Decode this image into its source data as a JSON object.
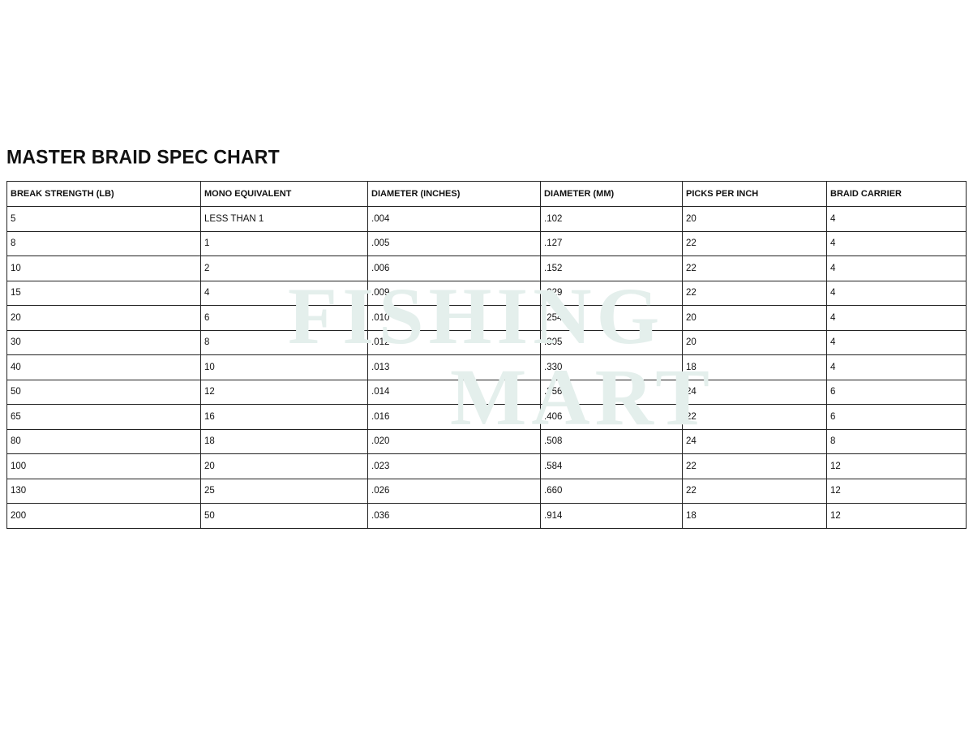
{
  "title": "MASTER BRAID SPEC CHART",
  "watermark": {
    "line1": "FISHING",
    "line2": "MART",
    "color": "#e4efec"
  },
  "table": {
    "headers": [
      "BREAK STRENGTH (LB)",
      "MONO EQUIVALENT",
      "DIAMETER (INCHES)",
      "DIAMETER (MM)",
      "PICKS PER INCH",
      "BRAID CARRIER"
    ],
    "rows": [
      [
        "5",
        "LESS THAN 1",
        ".004",
        ".102",
        "20",
        "4"
      ],
      [
        "8",
        "1",
        ".005",
        ".127",
        "22",
        "4"
      ],
      [
        "10",
        "2",
        ".006",
        ".152",
        "22",
        "4"
      ],
      [
        "15",
        "4",
        ".009",
        ".229",
        "22",
        "4"
      ],
      [
        "20",
        "6",
        ".010",
        ".254",
        "20",
        "4"
      ],
      [
        "30",
        "8",
        ".012",
        ".305",
        "20",
        "4"
      ],
      [
        "40",
        "10",
        ".013",
        ".330",
        "18",
        "4"
      ],
      [
        "50",
        "12",
        ".014",
        ".356",
        "24",
        "6"
      ],
      [
        "65",
        "16",
        ".016",
        ".406",
        "22",
        "6"
      ],
      [
        "80",
        "18",
        ".020",
        ".508",
        "24",
        "8"
      ],
      [
        "100",
        "20",
        ".023",
        ".584",
        "22",
        "12"
      ],
      [
        "130",
        "25",
        ".026",
        ".660",
        "22",
        "12"
      ],
      [
        "200",
        "50",
        ".036",
        ".914",
        "18",
        "12"
      ]
    ]
  }
}
